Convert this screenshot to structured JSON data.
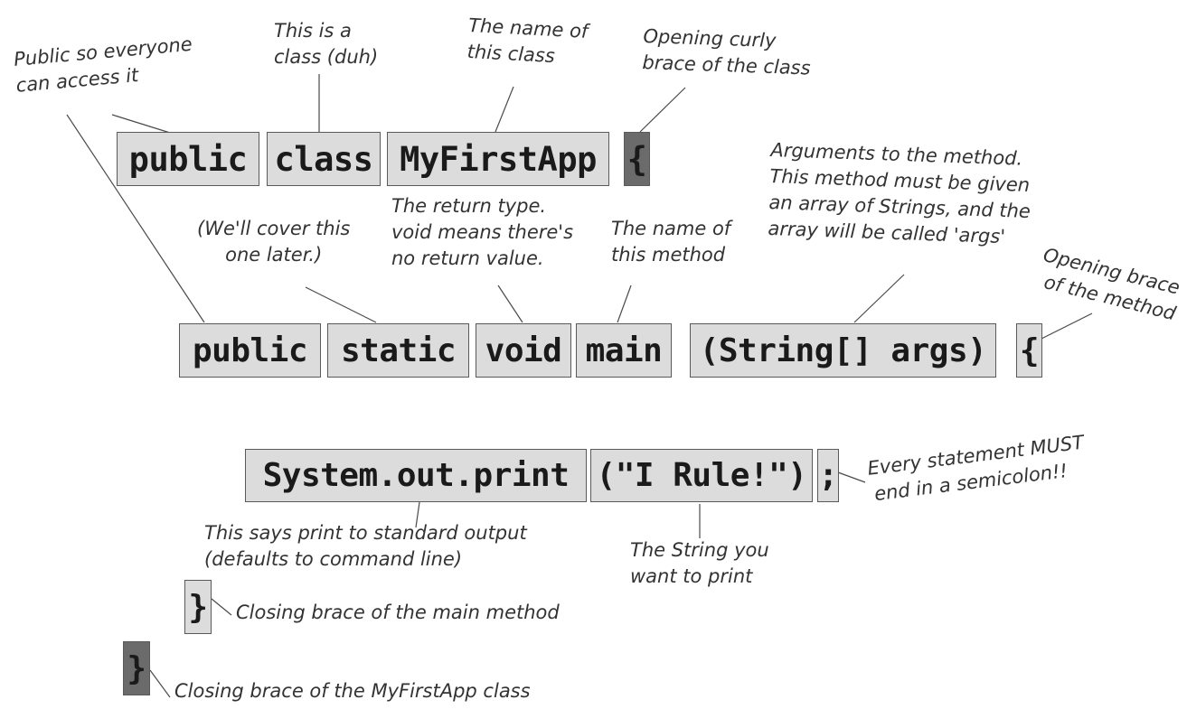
{
  "tokens": {
    "class_public": "public",
    "class_kw": "class",
    "class_name": "MyFirstApp",
    "class_brace": "{",
    "method_public": "public",
    "method_static": "static",
    "method_void": "void",
    "method_main": "main",
    "method_args": "(String[] args)",
    "method_brace": "{",
    "stmt_call": "System.out.print",
    "stmt_arg": "(\"I Rule!\")",
    "stmt_semicolon": ";",
    "close_method": "}",
    "close_class": "}"
  },
  "notes": {
    "public": [
      "Public so everyone",
      "can access it"
    ],
    "class": [
      "This is a",
      "class (duh)"
    ],
    "name": [
      "The name of",
      "this class"
    ],
    "class_brace": [
      "Opening curly",
      "brace of the class"
    ],
    "static": [
      "(We'll cover this",
      "one later.)"
    ],
    "return_type": [
      "The return type.",
      "void means there's",
      "no return value."
    ],
    "method_name": [
      "The name of",
      "this method"
    ],
    "arguments": [
      "Arguments to the method.",
      "This method must be given",
      "an array of Strings, and the",
      "array will be called 'args'"
    ],
    "method_brace": [
      "Opening brace",
      "of the method"
    ],
    "semicolon": [
      "Every statement MUST",
      "end in a semicolon!!"
    ],
    "print": [
      "This says print to standard output",
      "(defaults to command line)"
    ],
    "string": [
      "The String you",
      "want to print"
    ],
    "close_method": "Closing brace of the main method",
    "close_class": "Closing brace of the MyFirstApp class"
  }
}
